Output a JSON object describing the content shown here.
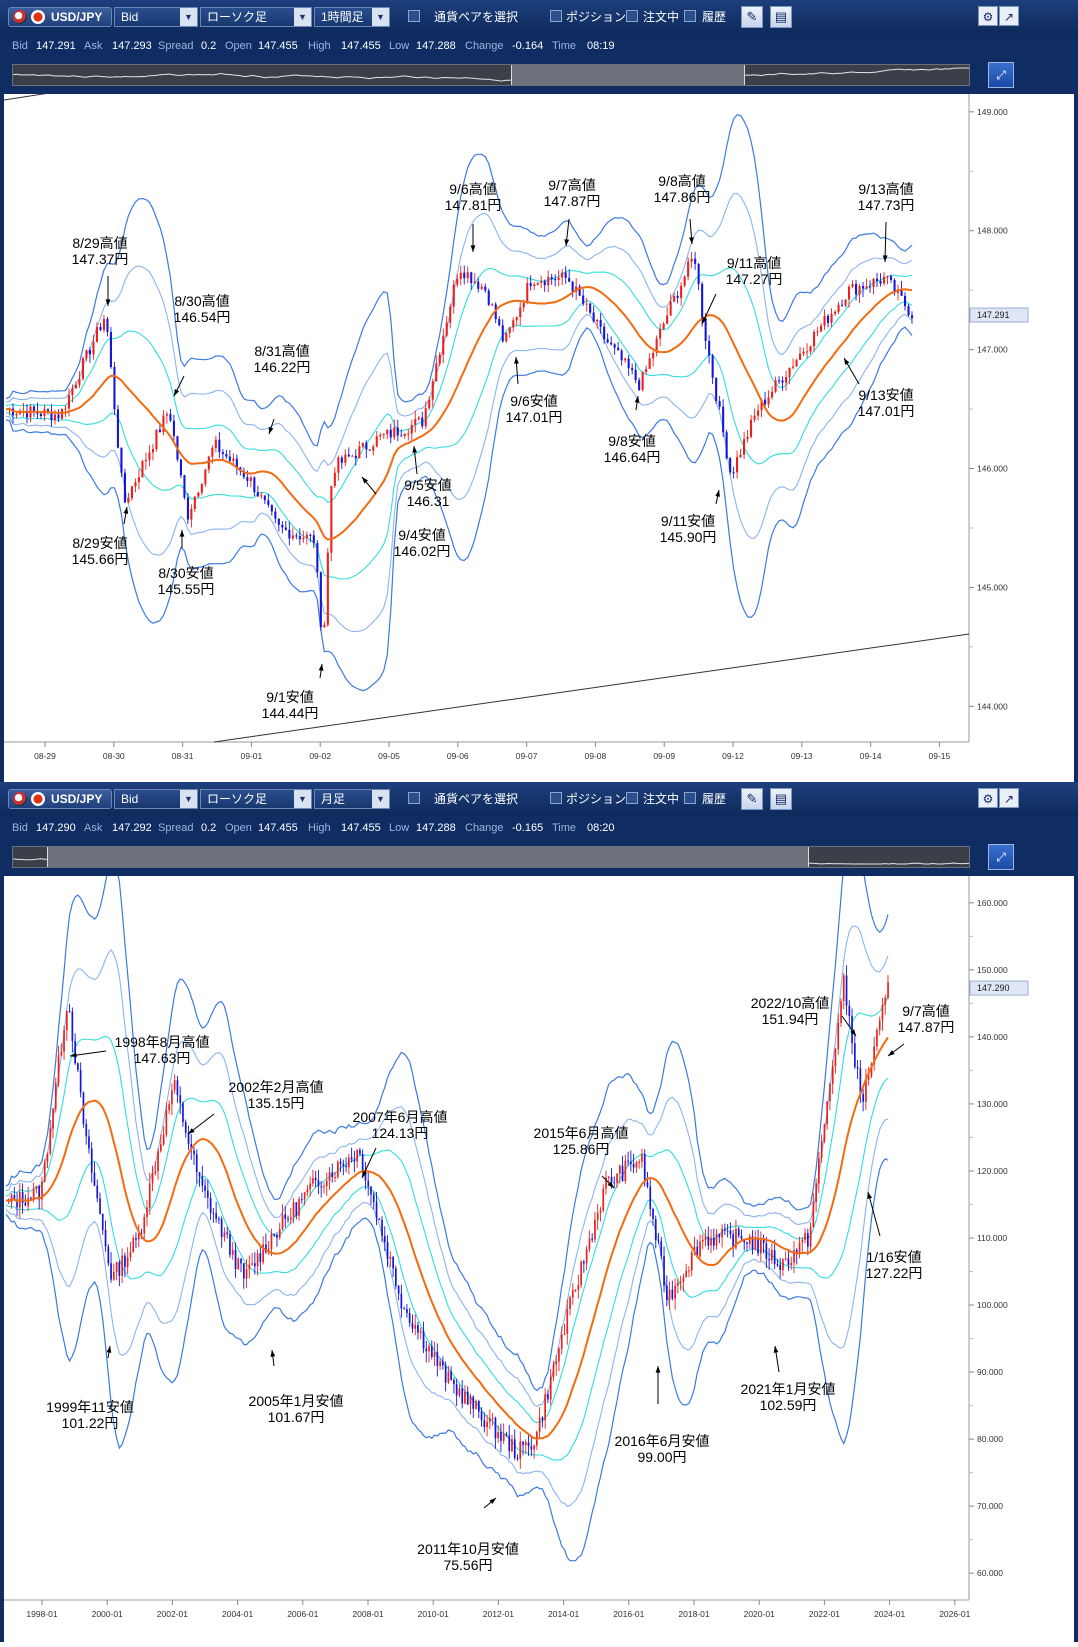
{
  "panel1": {
    "toolbar": {
      "pair": "USD/JPY",
      "price_type": "Bid",
      "chart_type": "ローソク足",
      "timeframe": "1時間足",
      "select_pair_label": "通貨ペアを選択",
      "position_label": "ポジション",
      "order_label": "注文中",
      "history_label": "履歴"
    },
    "info": {
      "bid_label": "Bid",
      "bid": "147.291",
      "ask_label": "Ask",
      "ask": "147.293",
      "spread_label": "Spread",
      "spread": "0.2",
      "open_label": "Open",
      "open": "147.455",
      "high_label": "High",
      "high": "147.455",
      "low_label": "Low",
      "low": "147.288",
      "change_label": "Change",
      "change": "-0.164",
      "time_label": "Time",
      "time": "08:19"
    },
    "chart_data": {
      "type": "candlestick",
      "x_ticks": [
        "08-29",
        "08-30",
        "08-31",
        "09-01",
        "09-02",
        "09-05",
        "09-06",
        "09-07",
        "09-08",
        "09-09",
        "09-12",
        "09-13",
        "09-14",
        "09-15"
      ],
      "y_ticks": [
        "149.000",
        "148.000",
        "147.000",
        "146.000",
        "145.000",
        "144.000"
      ],
      "ylim": [
        143.7,
        149.15
      ],
      "last_price": "147.291",
      "indicators": [
        "移動平均線",
        "ボリンジャーバンド"
      ],
      "annotations": [
        {
          "label": "8/29高値",
          "value": "147.37円"
        },
        {
          "label": "8/29安値",
          "value": "145.66円"
        },
        {
          "label": "8/30高値",
          "value": "146.54円"
        },
        {
          "label": "8/30安値",
          "value": "145.55円"
        },
        {
          "label": "8/31高値",
          "value": "146.22円"
        },
        {
          "label": "9/1安値",
          "value": "144.44円"
        },
        {
          "label": "9/4安値",
          "value": "146.02円"
        },
        {
          "label": "9/5安値",
          "value": "146.31"
        },
        {
          "label": "9/6高値",
          "value": "147.81円"
        },
        {
          "label": "9/6安値",
          "value": "147.01円"
        },
        {
          "label": "9/7高値",
          "value": "147.87円"
        },
        {
          "label": "9/8高値",
          "value": "147.86円"
        },
        {
          "label": "9/8安値",
          "value": "146.64円"
        },
        {
          "label": "9/11高値",
          "value": "147.27円"
        },
        {
          "label": "9/11安値",
          "value": "145.90円"
        },
        {
          "label": "9/13高値",
          "value": "147.73円"
        },
        {
          "label": "9/13安値",
          "value": "147.01円"
        }
      ]
    }
  },
  "panel2": {
    "toolbar": {
      "pair": "USD/JPY",
      "price_type": "Bid",
      "chart_type": "ローソク足",
      "timeframe": "月足",
      "select_pair_label": "通貨ペアを選択",
      "position_label": "ポジション",
      "order_label": "注文中",
      "history_label": "履歴"
    },
    "info": {
      "bid_label": "Bid",
      "bid": "147.290",
      "ask_label": "Ask",
      "ask": "147.292",
      "spread_label": "Spread",
      "spread": "0.2",
      "open_label": "Open",
      "open": "147.455",
      "high_label": "High",
      "high": "147.455",
      "low_label": "Low",
      "low": "147.288",
      "change_label": "Change",
      "change": "-0.165",
      "time_label": "Time",
      "time": "08:20"
    },
    "chart_data": {
      "type": "candlestick",
      "x_ticks": [
        "1998-01",
        "2000-01",
        "2002-01",
        "2004-01",
        "2006-01",
        "2008-01",
        "2010-01",
        "2012-01",
        "2014-01",
        "2016-01",
        "2018-01",
        "2020-01",
        "2022-01",
        "2024-01",
        "2026-01"
      ],
      "y_ticks": [
        "160.000",
        "150.000",
        "140.000",
        "130.000",
        "120.000",
        "110.000",
        "100.000",
        "90.000",
        "80.000",
        "70.000",
        "60.000"
      ],
      "ylim": [
        56,
        164
      ],
      "last_price": "147.290",
      "indicators": [
        "移動平均線",
        "ボリンジャーバンド"
      ],
      "annotations": [
        {
          "label": "1998年8月高値",
          "value": "147.63円"
        },
        {
          "label": "1999年11安値",
          "value": "101.22円"
        },
        {
          "label": "2002年2月高値",
          "value": "135.15円"
        },
        {
          "label": "2005年1月安値",
          "value": "101.67円"
        },
        {
          "label": "2007年6月高値",
          "value": "124.13円"
        },
        {
          "label": "2011年10月安値",
          "value": "75.56円"
        },
        {
          "label": "2015年6月高値",
          "value": "125.86円"
        },
        {
          "label": "2016年6月安値",
          "value": "99.00円"
        },
        {
          "label": "2021年1月安値",
          "value": "102.59円"
        },
        {
          "label": "2022/10高値",
          "value": "151.94円"
        },
        {
          "label": "9/7高値",
          "value": "147.87円"
        },
        {
          "label": "1/16安値",
          "value": "127.22円"
        }
      ]
    }
  },
  "colors": {
    "toolbar_bg": "#0f2d63",
    "up_candle": "#e8231f",
    "down_candle": "#1616d8",
    "ma": "#f26b11",
    "bb_outer": "#3a7be0",
    "bb_mid": "#8cb4ee",
    "bb_inner": "#33dddd",
    "trendline": "#333333"
  },
  "icons": [
    "usd-flag-icon",
    "jpy-flag-icon",
    "dropdown-arrow-icon",
    "chart-tool-icon",
    "window-icon",
    "gear-icon",
    "popout-icon",
    "zoom-expand-icon"
  ]
}
